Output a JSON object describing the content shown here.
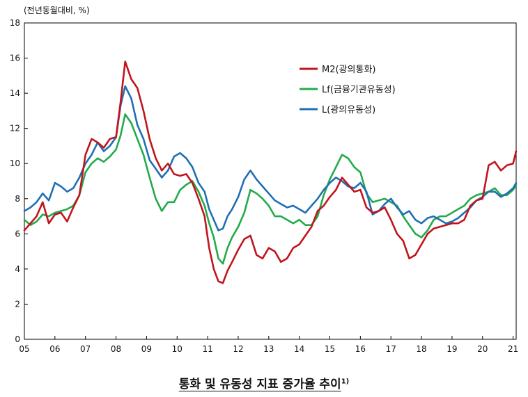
{
  "unit_label": "(전년동월대비, %)",
  "caption": {
    "text": "통화 및 유동성 지표 증가율 추이",
    "footnote": "1)"
  },
  "colors": {
    "M2": "#c0151c",
    "Lf": "#22ab4a",
    "L": "#1f6fb4"
  },
  "chart_data": {
    "type": "line",
    "x_unit": "year (20xx)",
    "xlim": [
      2005,
      2021.1
    ],
    "ylim": [
      0,
      18
    ],
    "x_ticks": [
      {
        "x": 2005,
        "label": "05"
      },
      {
        "x": 2006,
        "label": "06"
      },
      {
        "x": 2007,
        "label": "07"
      },
      {
        "x": 2008,
        "label": "08"
      },
      {
        "x": 2009,
        "label": "09"
      },
      {
        "x": 2010,
        "label": "10"
      },
      {
        "x": 2011,
        "label": "11"
      },
      {
        "x": 2012,
        "label": "12"
      },
      {
        "x": 2013,
        "label": "13"
      },
      {
        "x": 2014,
        "label": "14"
      },
      {
        "x": 2015,
        "label": "15"
      },
      {
        "x": 2016,
        "label": "16"
      },
      {
        "x": 2017,
        "label": "17"
      },
      {
        "x": 2018,
        "label": "18"
      },
      {
        "x": 2019,
        "label": "19"
      },
      {
        "x": 2020,
        "label": "20"
      },
      {
        "x": 2021,
        "label": "21"
      }
    ],
    "y_ticks": [
      0,
      2,
      4,
      6,
      8,
      10,
      12,
      14,
      16,
      18
    ],
    "grid": false,
    "legend": "top-center",
    "series": [
      {
        "key": "M2",
        "name": "M2(광의통화)",
        "x": [
          2005.0,
          2005.2,
          2005.4,
          2005.6,
          2005.8,
          2006.0,
          2006.2,
          2006.4,
          2006.6,
          2006.8,
          2007.0,
          2007.2,
          2007.4,
          2007.6,
          2007.8,
          2008.0,
          2008.15,
          2008.3,
          2008.5,
          2008.7,
          2008.9,
          2009.1,
          2009.3,
          2009.5,
          2009.7,
          2009.9,
          2010.1,
          2010.3,
          2010.5,
          2010.7,
          2010.9,
          2011.05,
          2011.2,
          2011.35,
          2011.5,
          2011.65,
          2011.8,
          2012.0,
          2012.2,
          2012.4,
          2012.6,
          2012.8,
          2013.0,
          2013.2,
          2013.4,
          2013.6,
          2013.8,
          2014.0,
          2014.2,
          2014.4,
          2014.6,
          2014.8,
          2015.0,
          2015.2,
          2015.4,
          2015.6,
          2015.8,
          2016.0,
          2016.2,
          2016.4,
          2016.6,
          2016.8,
          2017.0,
          2017.2,
          2017.4,
          2017.6,
          2017.8,
          2018.0,
          2018.2,
          2018.4,
          2018.6,
          2018.8,
          2019.0,
          2019.2,
          2019.4,
          2019.6,
          2019.8,
          2020.0,
          2020.2,
          2020.4,
          2020.6,
          2020.8,
          2021.0,
          2021.1
        ],
        "values": [
          6.2,
          6.6,
          7.0,
          7.8,
          6.6,
          7.1,
          7.2,
          6.7,
          7.5,
          8.2,
          10.5,
          11.4,
          11.2,
          10.9,
          11.4,
          11.5,
          13.5,
          15.8,
          14.8,
          14.3,
          13.0,
          11.4,
          10.3,
          9.6,
          10.0,
          9.4,
          9.3,
          9.4,
          8.9,
          8.0,
          7.0,
          5.2,
          4.0,
          3.3,
          3.2,
          3.9,
          4.4,
          5.1,
          5.7,
          5.9,
          4.8,
          4.6,
          5.2,
          5.0,
          4.4,
          4.6,
          5.2,
          5.4,
          5.9,
          6.4,
          7.3,
          7.6,
          8.1,
          8.5,
          9.2,
          8.8,
          8.4,
          8.5,
          7.5,
          7.2,
          7.3,
          7.5,
          6.8,
          6.0,
          5.6,
          4.6,
          4.8,
          5.4,
          6.0,
          6.3,
          6.4,
          6.5,
          6.6,
          6.6,
          6.8,
          7.6,
          7.9,
          8.0,
          9.9,
          10.1,
          9.6,
          9.9,
          10.0,
          10.7
        ]
      },
      {
        "key": "Lf",
        "name": "Lf(금융기관유동성)",
        "x": [
          2005.0,
          2005.2,
          2005.4,
          2005.6,
          2005.8,
          2006.0,
          2006.2,
          2006.4,
          2006.6,
          2006.8,
          2007.0,
          2007.2,
          2007.4,
          2007.6,
          2007.8,
          2008.0,
          2008.15,
          2008.3,
          2008.5,
          2008.7,
          2008.9,
          2009.1,
          2009.3,
          2009.5,
          2009.7,
          2009.9,
          2010.1,
          2010.3,
          2010.5,
          2010.7,
          2010.9,
          2011.05,
          2011.2,
          2011.35,
          2011.5,
          2011.65,
          2011.8,
          2012.0,
          2012.2,
          2012.4,
          2012.6,
          2012.8,
          2013.0,
          2013.2,
          2013.4,
          2013.6,
          2013.8,
          2014.0,
          2014.2,
          2014.4,
          2014.6,
          2014.8,
          2015.0,
          2015.2,
          2015.4,
          2015.6,
          2015.8,
          2016.0,
          2016.2,
          2016.4,
          2016.6,
          2016.8,
          2017.0,
          2017.2,
          2017.4,
          2017.6,
          2017.8,
          2018.0,
          2018.2,
          2018.4,
          2018.6,
          2018.8,
          2019.0,
          2019.2,
          2019.4,
          2019.6,
          2019.8,
          2020.0,
          2020.2,
          2020.4,
          2020.6,
          2020.8,
          2021.0,
          2021.1
        ],
        "values": [
          6.8,
          6.5,
          6.7,
          7.1,
          7.0,
          7.2,
          7.3,
          7.4,
          7.6,
          8.2,
          9.5,
          10.0,
          10.3,
          10.1,
          10.4,
          10.8,
          11.6,
          12.8,
          12.3,
          11.4,
          10.5,
          9.2,
          8.0,
          7.3,
          7.8,
          7.8,
          8.5,
          8.8,
          9.0,
          8.4,
          7.6,
          6.6,
          5.8,
          4.6,
          4.3,
          5.2,
          5.8,
          6.4,
          7.2,
          8.5,
          8.3,
          8.0,
          7.6,
          7.0,
          7.0,
          6.8,
          6.6,
          6.8,
          6.5,
          6.5,
          7.0,
          8.2,
          9.1,
          9.8,
          10.5,
          10.3,
          9.8,
          9.5,
          8.3,
          7.8,
          7.9,
          8.0,
          7.8,
          7.6,
          7.0,
          6.5,
          6.0,
          5.8,
          6.2,
          6.8,
          7.0,
          7.0,
          7.2,
          7.4,
          7.6,
          8.0,
          8.2,
          8.3,
          8.4,
          8.6,
          8.2,
          8.2,
          8.5,
          8.8
        ]
      },
      {
        "key": "L",
        "name": "L(광의유동성)",
        "x": [
          2005.0,
          2005.2,
          2005.4,
          2005.6,
          2005.8,
          2006.0,
          2006.2,
          2006.4,
          2006.6,
          2006.8,
          2007.0,
          2007.2,
          2007.4,
          2007.6,
          2007.8,
          2008.0,
          2008.15,
          2008.3,
          2008.5,
          2008.7,
          2008.9,
          2009.1,
          2009.3,
          2009.5,
          2009.7,
          2009.9,
          2010.1,
          2010.3,
          2010.5,
          2010.7,
          2010.9,
          2011.05,
          2011.2,
          2011.35,
          2011.5,
          2011.65,
          2011.8,
          2012.0,
          2012.2,
          2012.4,
          2012.6,
          2012.8,
          2013.0,
          2013.2,
          2013.4,
          2013.6,
          2013.8,
          2014.0,
          2014.2,
          2014.4,
          2014.6,
          2014.8,
          2015.0,
          2015.2,
          2015.4,
          2015.6,
          2015.8,
          2016.0,
          2016.2,
          2016.4,
          2016.6,
          2016.8,
          2017.0,
          2017.2,
          2017.4,
          2017.6,
          2017.8,
          2018.0,
          2018.2,
          2018.4,
          2018.6,
          2018.8,
          2019.0,
          2019.2,
          2019.4,
          2019.6,
          2019.8,
          2020.0,
          2020.2,
          2020.4,
          2020.6,
          2020.8,
          2021.0,
          2021.1
        ],
        "values": [
          7.3,
          7.5,
          7.8,
          8.3,
          7.9,
          8.9,
          8.7,
          8.4,
          8.6,
          9.2,
          10.0,
          10.5,
          11.2,
          10.7,
          11.0,
          11.5,
          13.3,
          14.4,
          13.7,
          12.2,
          11.4,
          10.2,
          9.7,
          9.2,
          9.6,
          10.4,
          10.6,
          10.3,
          9.8,
          8.9,
          8.4,
          7.4,
          6.8,
          6.2,
          6.3,
          7.0,
          7.4,
          8.1,
          9.1,
          9.6,
          9.1,
          8.7,
          8.3,
          7.9,
          7.7,
          7.5,
          7.6,
          7.4,
          7.2,
          7.6,
          8.0,
          8.5,
          8.9,
          9.2,
          9.0,
          8.7,
          8.6,
          8.9,
          8.4,
          7.1,
          7.3,
          7.7,
          8.0,
          7.5,
          7.1,
          7.3,
          6.8,
          6.6,
          6.9,
          7.0,
          6.8,
          6.6,
          6.7,
          6.9,
          7.2,
          7.5,
          7.9,
          8.1,
          8.4,
          8.4,
          8.1,
          8.3,
          8.6,
          8.9
        ]
      }
    ]
  }
}
